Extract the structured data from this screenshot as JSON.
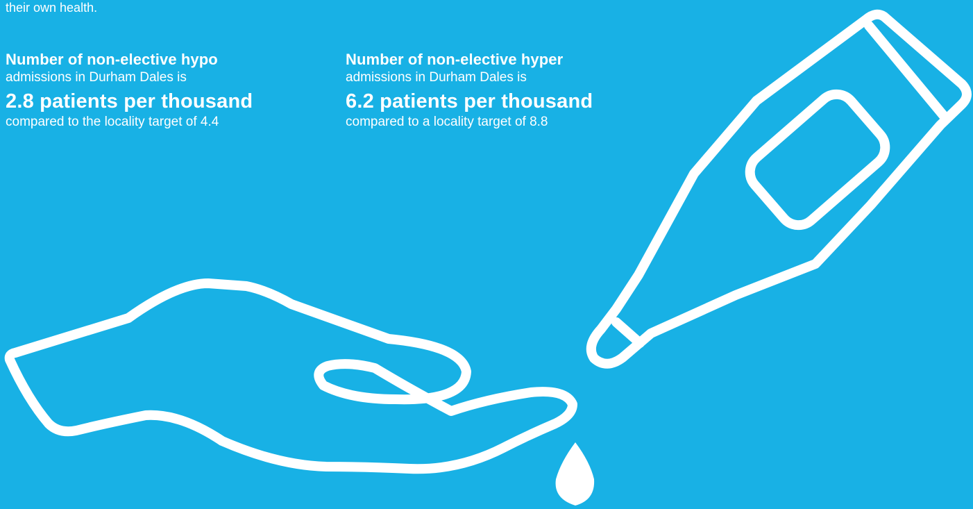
{
  "intro": {
    "text": "their own health."
  },
  "stats": {
    "hypo": {
      "heading": "Number of non-elective hypo",
      "sub": "admissions in Durham Dales is",
      "value": "2.8 patients per thousand",
      "compare": "compared to the locality target of 4.4"
    },
    "hyper": {
      "heading": "Number of non-elective hyper",
      "sub": "admissions in Durham Dales is",
      "value": "6.2 patients per thousand",
      "compare": "compared to a locality target of 8.8"
    }
  },
  "colors": {
    "background": "#18b1e5",
    "foreground": "#ffffff"
  },
  "icons": [
    "thermometer-icon",
    "hand-icon",
    "droplet-icon"
  ]
}
